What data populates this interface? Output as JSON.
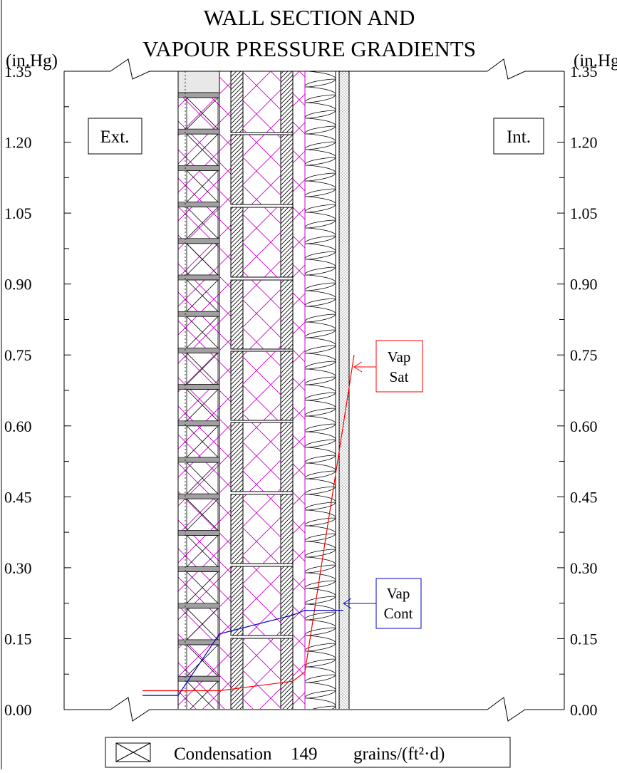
{
  "title": {
    "line1": "WALL SECTION AND",
    "line2": "VAPOUR PRESSURE GRADIENTS"
  },
  "axes": {
    "unit_left": "(in.Hg)",
    "unit_right": "(in.Hg)",
    "ylim": [
      0,
      1.35
    ],
    "major_ticks": [
      "0.00",
      "0.15",
      "0.30",
      "0.45",
      "0.60",
      "0.75",
      "0.90",
      "1.05",
      "1.20",
      "1.35"
    ],
    "minor_step": 0.075
  },
  "labels": {
    "exterior": "Ext.",
    "interior": "Int."
  },
  "callouts": {
    "vap_sat": {
      "line1": "Vap",
      "line2": "Sat",
      "color": "#ff0000"
    },
    "vap_cont": {
      "line1": "Vap",
      "line2": "Cont",
      "color": "#0000cc"
    }
  },
  "legend": {
    "icon": "condensation-hatch-icon",
    "label": "Condensation",
    "value": "149",
    "units": "grains/(ft²·d)"
  },
  "colors": {
    "insulation_hatch": "#cc00cc",
    "brick_mortar": "#a0a0a0",
    "sat_line": "#ff0000",
    "cont_line": "#0000cc"
  },
  "chart_data": {
    "type": "line",
    "ylim": [
      0,
      1.35
    ],
    "series": [
      {
        "name": "Vap Sat",
        "values": [
          0.04,
          0.04,
          0.04,
          0.06,
          0.08,
          0.75
        ]
      },
      {
        "name": "Vap Cont",
        "values": [
          0.03,
          0.03,
          0.16,
          0.2,
          0.21,
          0.21
        ]
      }
    ]
  }
}
